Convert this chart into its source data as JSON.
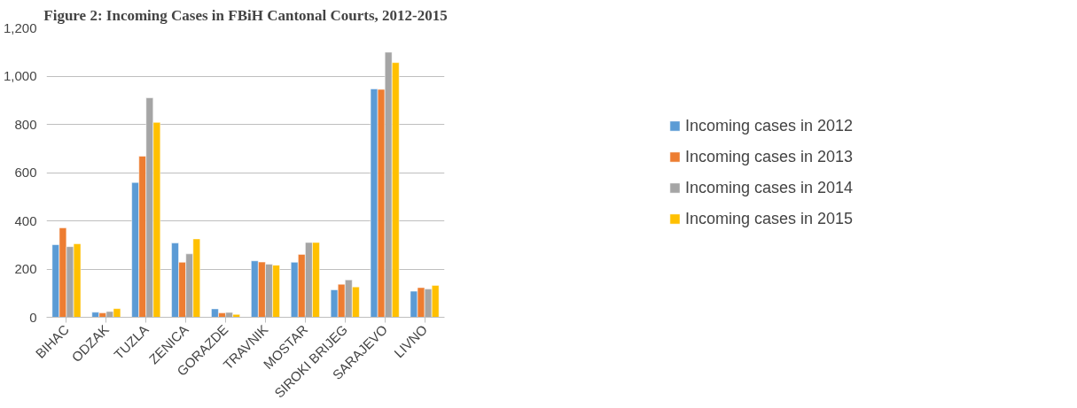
{
  "chart_data": {
    "type": "bar",
    "title": "Figure 2: Incoming Cases in FBiH Cantonal Courts, 2012-2015",
    "categories": [
      "BIHAC",
      "ODZAK",
      "TUZLA",
      "ZENICA",
      "GORAZDE",
      "TRAVNIK",
      "MOSTAR",
      "SIROKI BRIJEG",
      "SARAJEVO",
      "LIVNO"
    ],
    "series": [
      {
        "name": "Incoming cases in 2012",
        "color": "#5b9bd5",
        "values": [
          301,
          21,
          559,
          308,
          35,
          234,
          228,
          114,
          947,
          108
        ]
      },
      {
        "name": "Incoming cases in 2013",
        "color": "#ed7d31",
        "values": [
          371,
          18,
          668,
          228,
          18,
          229,
          261,
          137,
          945,
          123
        ]
      },
      {
        "name": "Incoming cases in 2014",
        "color": "#a5a5a5",
        "values": [
          293,
          24,
          910,
          263,
          20,
          220,
          310,
          155,
          1099,
          117
        ]
      },
      {
        "name": "Incoming cases in 2015",
        "color": "#ffc000",
        "values": [
          305,
          36,
          808,
          325,
          12,
          216,
          310,
          126,
          1056,
          132
        ]
      }
    ],
    "ylim": [
      0,
      1200
    ],
    "yticks": [
      {
        "value": 0,
        "label": "0"
      },
      {
        "value": 200,
        "label": "200"
      },
      {
        "value": 400,
        "label": "400"
      },
      {
        "value": 600,
        "label": "600"
      },
      {
        "value": 800,
        "label": "800"
      },
      {
        "value": 1000,
        "label": "1,000"
      },
      {
        "value": 1200,
        "label": "1,200"
      }
    ],
    "grid": "y",
    "legend": "right"
  }
}
